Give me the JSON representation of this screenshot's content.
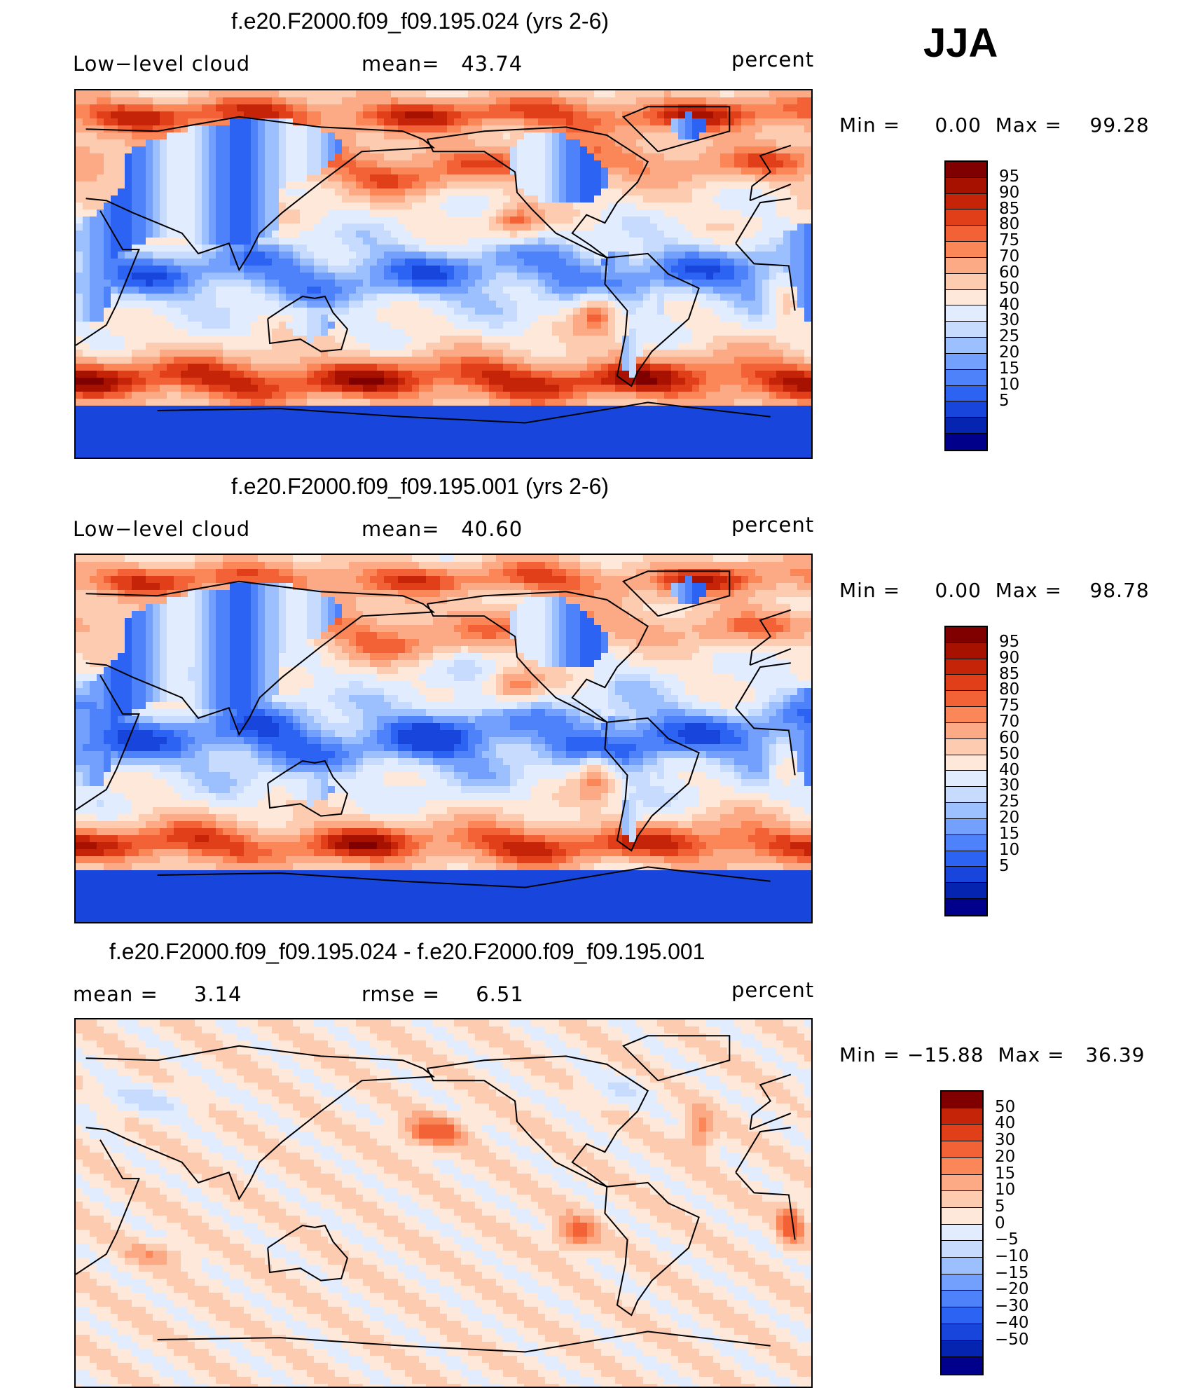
{
  "season": "JJA",
  "colors": {
    "seq": [
      "#00008a",
      "#0524b0",
      "#1846dc",
      "#2d63f2",
      "#4d82fb",
      "#72a0fc",
      "#9cbffe",
      "#c6dbfe",
      "#e1ecfe",
      "#fee8da",
      "#fdcbb0",
      "#fcaa85",
      "#fb8658",
      "#f26236",
      "#e13f19",
      "#c62408",
      "#a61100",
      "#800000"
    ],
    "diff": [
      "#00008a",
      "#0524b0",
      "#1846dc",
      "#2d63f2",
      "#4d82fb",
      "#72a0fc",
      "#9cbffe",
      "#c6dbfe",
      "#e1ecfe",
      "#fee8da",
      "#fdcbb0",
      "#fcaa85",
      "#fb8658",
      "#f26236",
      "#e13f19",
      "#c62408",
      "#800000"
    ]
  },
  "chart_data": [
    {
      "type": "heatmap",
      "title": "f.e20.F2000.f09_f09.195.024 (yrs 2-6)",
      "variable": "Low−level cloud",
      "stat": "mean=   43.74",
      "units": "percent",
      "minmax": "Min =     0.00  Max =    99.28",
      "min": 0.0,
      "max": 99.28,
      "mean": 43.74,
      "colorbar_levels": [
        "95",
        "90",
        "85",
        "80",
        "75",
        "70",
        "60",
        "50",
        "40",
        "30",
        "25",
        "20",
        "15",
        "10",
        "5"
      ]
    },
    {
      "type": "heatmap",
      "title": "f.e20.F2000.f09_f09.195.001 (yrs 2-6)",
      "variable": "Low−level cloud",
      "stat": "mean=   40.60",
      "units": "percent",
      "minmax": "Min =     0.00  Max =    98.78",
      "min": 0.0,
      "max": 98.78,
      "mean": 40.6,
      "colorbar_levels": [
        "95",
        "90",
        "85",
        "80",
        "75",
        "70",
        "60",
        "50",
        "40",
        "30",
        "25",
        "20",
        "15",
        "10",
        "5"
      ]
    },
    {
      "type": "heatmap",
      "title": "f.e20.F2000.f09_f09.195.024 - f.e20.F2000.f09_f09.195.001",
      "stat_left": "mean =     3.14",
      "stat_mid": "rmse =     6.51",
      "units": "percent",
      "minmax": "Min = −15.88  Max =   36.39",
      "min": -15.88,
      "max": 36.39,
      "mean": 3.14,
      "rmse": 6.51,
      "colorbar_levels": [
        "50",
        "40",
        "30",
        "20",
        "15",
        "10",
        "5",
        "0",
        "−5",
        "−10",
        "−15",
        "−20",
        "−30",
        "−40",
        "−50"
      ]
    }
  ]
}
